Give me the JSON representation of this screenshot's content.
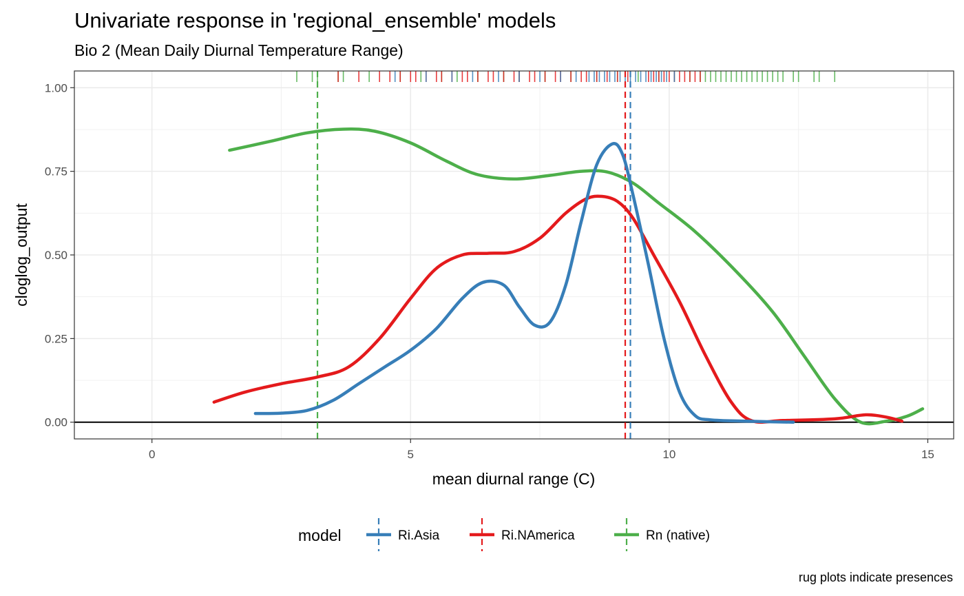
{
  "chart_data": {
    "type": "line",
    "title": "Univariate response in 'regional_ensemble' models",
    "subtitle": "Bio 2 (Mean Daily Diurnal Temperature Range)",
    "xlabel": "mean diurnal range (C)",
    "ylabel": "cloglog_output",
    "caption": "rug plots indicate presences",
    "xlim": [
      -1.5,
      15.5
    ],
    "ylim": [
      -0.05,
      1.05
    ],
    "x_ticks": [
      0,
      5,
      10,
      15
    ],
    "x_tick_labels": [
      "0",
      "5",
      "10",
      "15"
    ],
    "y_ticks": [
      0,
      0.25,
      0.5,
      0.75,
      1.0
    ],
    "y_tick_labels": [
      "0.00",
      "0.25",
      "0.50",
      "0.75",
      "1.00"
    ],
    "grid": true,
    "legend": {
      "title": "model",
      "position": "bottom",
      "entries": [
        "Ri.Asia",
        "Ri.NAmerica",
        "Rn (native)"
      ]
    },
    "colors": {
      "Ri.Asia": "#377eb8",
      "Ri.NAmerica": "#e41a1c",
      "Rn (native)": "#4daf4a"
    },
    "hline_y": 0,
    "series": [
      {
        "name": "Ri.Asia",
        "x": [
          2.0,
          2.5,
          3.0,
          3.5,
          4.0,
          4.5,
          5.0,
          5.5,
          6.0,
          6.4,
          6.8,
          7.1,
          7.4,
          7.7,
          8.0,
          8.3,
          8.6,
          8.9,
          9.1,
          9.3,
          9.6,
          9.9,
          10.2,
          10.5,
          10.8,
          11.5,
          12.4
        ],
        "y": [
          0.026,
          0.027,
          0.035,
          0.065,
          0.115,
          0.165,
          0.215,
          0.28,
          0.37,
          0.418,
          0.41,
          0.345,
          0.29,
          0.3,
          0.41,
          0.6,
          0.77,
          0.832,
          0.8,
          0.68,
          0.47,
          0.25,
          0.09,
          0.02,
          0.007,
          0.003,
          0.0
        ]
      },
      {
        "name": "Ri.NAmerica",
        "x": [
          1.2,
          1.8,
          2.5,
          3.2,
          3.8,
          4.4,
          5.0,
          5.5,
          6.0,
          6.5,
          7.0,
          7.5,
          8.0,
          8.4,
          8.7,
          9.0,
          9.3,
          9.7,
          10.2,
          10.7,
          11.2,
          11.6,
          12.2,
          13.2,
          13.8,
          14.2,
          14.5
        ],
        "y": [
          0.06,
          0.09,
          0.115,
          0.135,
          0.165,
          0.25,
          0.37,
          0.46,
          0.5,
          0.505,
          0.51,
          0.55,
          0.625,
          0.668,
          0.675,
          0.66,
          0.61,
          0.5,
          0.36,
          0.2,
          0.06,
          0.004,
          0.005,
          0.01,
          0.022,
          0.015,
          0.003
        ]
      },
      {
        "name": "Rn (native)",
        "x": [
          1.5,
          2.3,
          3.0,
          3.7,
          4.3,
          5.0,
          5.7,
          6.3,
          7.0,
          7.7,
          8.3,
          8.8,
          9.3,
          9.8,
          10.5,
          11.3,
          12.0,
          12.6,
          13.2,
          13.7,
          14.2,
          14.6,
          14.9
        ],
        "y": [
          0.813,
          0.84,
          0.865,
          0.876,
          0.87,
          0.835,
          0.78,
          0.74,
          0.727,
          0.738,
          0.75,
          0.748,
          0.715,
          0.655,
          0.57,
          0.45,
          0.33,
          0.2,
          0.07,
          0.0,
          0.003,
          0.018,
          0.04
        ]
      }
    ],
    "mean_vlines": [
      {
        "name": "Ri.Asia",
        "x": 9.25
      },
      {
        "name": "Ri.NAmerica",
        "x": 9.15
      },
      {
        "name": "Rn (native)",
        "x": 3.2
      }
    ],
    "rug": [
      {
        "name": "Rn (native)",
        "x": [
          2.8,
          3.1,
          3.2,
          3.6,
          3.7,
          4.2,
          4.8,
          5.2,
          5.6,
          5.9,
          6.3,
          6.8,
          7.1,
          7.6,
          8.1,
          8.6,
          9.0,
          9.4,
          9.8,
          10.1,
          10.4,
          10.6,
          10.7,
          10.8,
          10.9,
          11.0,
          11.1,
          11.2,
          11.3,
          11.4,
          11.5,
          11.6,
          11.7,
          11.8,
          11.9,
          12.0,
          12.1,
          12.2,
          12.4,
          12.5,
          12.8,
          12.9,
          13.2
        ]
      },
      {
        "name": "Ri.NAmerica",
        "x": [
          3.6,
          4.0,
          4.4,
          4.6,
          4.8,
          5.0,
          5.1,
          5.3,
          5.5,
          5.6,
          5.8,
          6.0,
          6.1,
          6.3,
          6.5,
          6.6,
          6.8,
          7.0,
          7.1,
          7.3,
          7.4,
          7.6,
          7.8,
          7.9,
          8.1,
          8.3,
          8.4,
          8.6,
          8.8,
          9.0,
          9.2,
          9.6,
          9.7,
          9.8,
          9.9,
          10.0,
          10.1,
          10.2,
          10.3,
          10.4,
          10.5,
          10.6
        ]
      },
      {
        "name": "Ri.Asia",
        "x": [
          4.7,
          5.3,
          5.8,
          6.2,
          6.7,
          7.1,
          7.5,
          7.9,
          8.2,
          8.45,
          8.55,
          8.65,
          8.75,
          8.85,
          8.95,
          9.05,
          9.15,
          9.25,
          9.35,
          9.45,
          9.55,
          9.65,
          9.75,
          9.85,
          9.95,
          10.1
        ]
      }
    ]
  }
}
